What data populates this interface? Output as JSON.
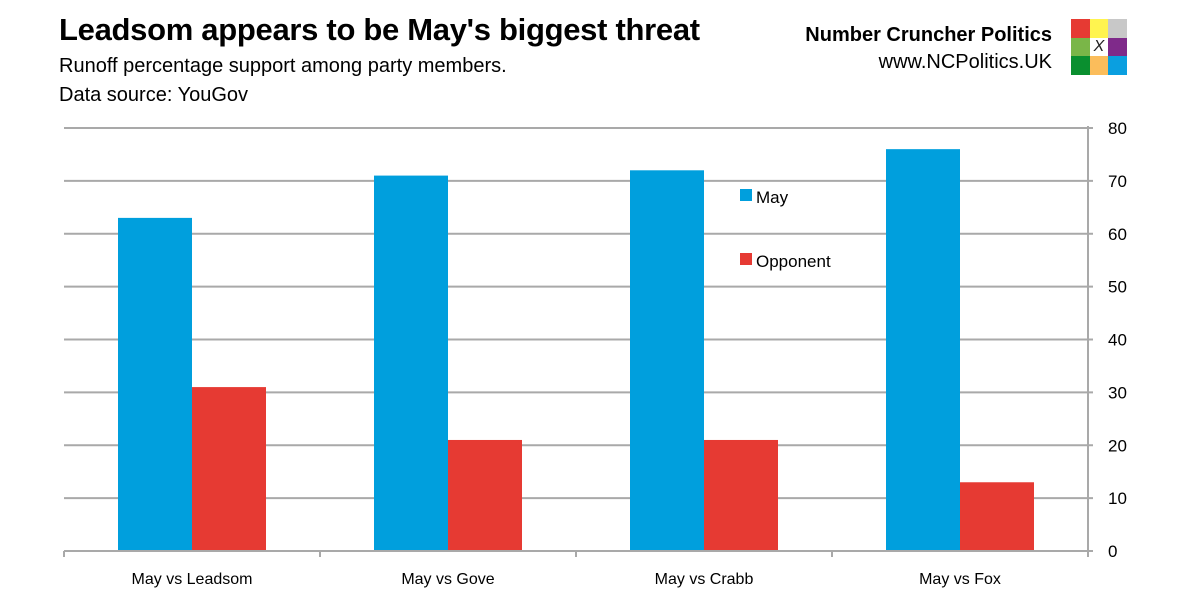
{
  "header": {
    "title": "Leadsom appears to be May's biggest threat",
    "subtitle": "Runoff percentage support among party members.",
    "source": "Data source: YouGov"
  },
  "brand": {
    "name": "Number Cruncher Politics",
    "url": "www.NCPolitics.UK",
    "logo_mark": "X",
    "logo_colors": [
      "#e63a33",
      "#fff44f",
      "#c8c8c8",
      "#7ab648",
      "#ffffff",
      "#7f2a8a",
      "#0a8f2f",
      "#fbbd5b",
      "#0a9fe0"
    ]
  },
  "chart_data": {
    "type": "bar",
    "title": "Leadsom appears to be May's biggest threat",
    "subtitle": "Runoff percentage support among party members.",
    "xlabel": "",
    "ylabel": "",
    "categories": [
      "May vs Leadsom",
      "May vs Gove",
      "May vs Crabb",
      "May vs Fox"
    ],
    "series": [
      {
        "name": "May",
        "color": "#009fdd",
        "values": [
          63,
          71,
          72,
          76
        ]
      },
      {
        "name": "Opponent",
        "color": "#e63a33",
        "values": [
          31,
          21,
          21,
          13
        ]
      }
    ],
    "ylim": [
      0,
      80
    ],
    "yticks": [
      0,
      10,
      20,
      30,
      40,
      50,
      60,
      70,
      80
    ],
    "y_axis_side": "right",
    "grid": true,
    "legend_position": "top-right (inside plot)"
  }
}
